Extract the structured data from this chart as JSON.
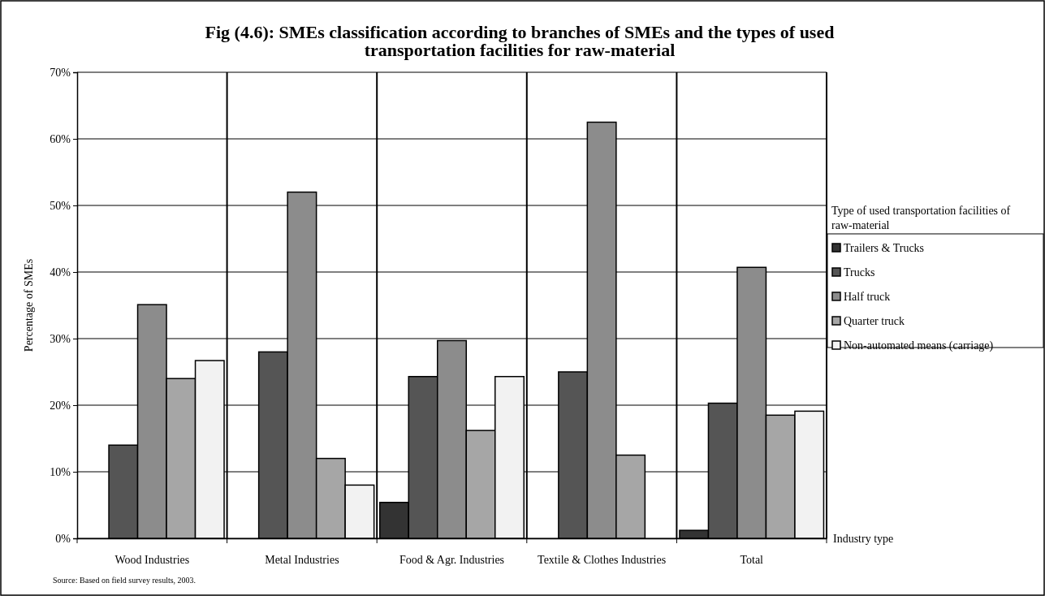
{
  "chart_data": {
    "type": "bar",
    "title": "Fig (4.6): SMEs classification according to branches of SMEs and the types of used transportation facilities for raw-material",
    "ylabel": "Percentage of SMEs",
    "legend_title": "Type of used transportation facilities of raw-material",
    "categories": [
      "Wood Industries",
      "Metal Industries",
      "Food & Agr. Industries",
      "Textile & Clothes Industries",
      "Total"
    ],
    "series": [
      {
        "name": "Trailers & Trucks",
        "color": "#333333",
        "values": [
          0,
          0,
          5.4,
          0,
          1.2
        ]
      },
      {
        "name": "Trucks",
        "color": "#555555",
        "values": [
          14,
          28,
          24.3,
          25,
          20.3
        ]
      },
      {
        "name": "Half truck",
        "color": "#8c8c8c",
        "values": [
          35.1,
          52,
          29.7,
          62.5,
          40.7
        ]
      },
      {
        "name": "Quarter truck",
        "color": "#a6a6a6",
        "values": [
          24,
          12,
          16.2,
          12.5,
          18.5
        ]
      },
      {
        "name": "Non-automated means (carriage)",
        "color": "#f2f2f2",
        "values": [
          26.7,
          8,
          24.3,
          0,
          19.1
        ]
      }
    ],
    "ylim": [
      0,
      70
    ],
    "yticks": [
      {
        "value": 0,
        "label": "0%"
      },
      {
        "value": 10,
        "label": "10%"
      },
      {
        "value": 20,
        "label": "20%"
      },
      {
        "value": 30,
        "label": "30%"
      },
      {
        "value": 40,
        "label": "40%"
      },
      {
        "value": 50,
        "label": "50%"
      },
      {
        "value": 60,
        "label": "60%"
      },
      {
        "value": 70,
        "label": "70%"
      }
    ],
    "grid": true,
    "legend": "right",
    "annotations": [
      "Source: Based on field survey results, 2003.",
      "Industry type"
    ]
  }
}
